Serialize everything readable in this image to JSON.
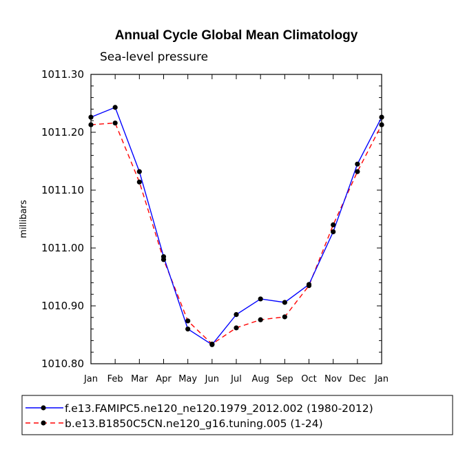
{
  "chart_data": {
    "type": "line",
    "title": "Annual Cycle Global Mean Climatology",
    "subtitle": "Sea-level pressure",
    "xlabel": "",
    "ylabel": "millibars",
    "categories": [
      "Jan",
      "Feb",
      "Mar",
      "Apr",
      "May",
      "Jun",
      "Jul",
      "Aug",
      "Sep",
      "Oct",
      "Nov",
      "Dec",
      "Jan"
    ],
    "ylim": [
      1010.8,
      1011.3
    ],
    "yticks": [
      "1010.80",
      "1010.90",
      "1011.00",
      "1011.10",
      "1011.20",
      "1011.30"
    ],
    "series": [
      {
        "name": "f.e13.FAMIPC5.ne120_ne120.1979_2012.002 (1980-2012)",
        "color": "#0000ff",
        "dash": "solid",
        "values": [
          1011.226,
          1011.243,
          1011.132,
          1010.985,
          1010.86,
          1010.833,
          1010.885,
          1010.912,
          1010.906,
          1010.937,
          1011.028,
          1011.145,
          1011.226
        ]
      },
      {
        "name": "b.e13.B1850C5CN.ne120_g16.tuning.005 (1-24)",
        "color": "#ff0000",
        "dash": "dashed",
        "values": [
          1011.213,
          1011.216,
          1011.114,
          1010.98,
          1010.874,
          1010.834,
          1010.862,
          1010.876,
          1010.881,
          1010.935,
          1011.04,
          1011.132,
          1011.213
        ]
      }
    ],
    "legend_position": "bottom"
  }
}
